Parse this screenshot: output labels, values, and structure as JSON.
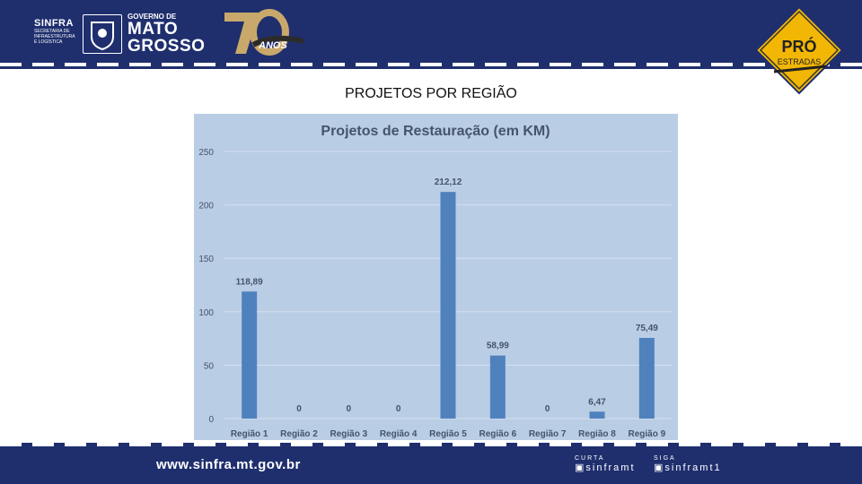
{
  "header": {
    "sinfra_title": "SINFRA",
    "sinfra_sub1": "SECRETARIA DE",
    "sinfra_sub2": "INFRAESTRUTURA",
    "sinfra_sub3": "E LOGÍSTICA",
    "gov_line1": "GOVERNO DE",
    "gov_line2": "MATO",
    "gov_line3": "GROSSO",
    "anos_label": "ANOS",
    "pro_label": "PRÓ",
    "estradas_label": "ESTRADAS"
  },
  "page_title": "PROJETOS POR REGIÃO",
  "footer": {
    "url": "www.sinfra.mt.gov.br",
    "curta_label": "CURTA",
    "curta_handle": "sinframt",
    "siga_label": "SIGA",
    "siga_handle": "sinframt1"
  },
  "colors": {
    "brand_navy": "#1f2f6e",
    "chart_bg": "#b9cde5",
    "bar": "#4f81bd",
    "title_text": "#44546a"
  },
  "chart_data": {
    "type": "bar",
    "title": "Projetos de Restauração (em KM)",
    "categories": [
      "Região 1",
      "Região 2",
      "Região 3",
      "Região 4",
      "Região 5",
      "Região 6",
      "Região 7",
      "Região 8",
      "Região 9"
    ],
    "values": [
      118.89,
      0,
      0,
      0,
      212.12,
      58.99,
      0,
      6.47,
      75.49
    ],
    "data_labels": [
      "118,89",
      "0",
      "0",
      "0",
      "212,12",
      "58,99",
      "0",
      "6,47",
      "75,49"
    ],
    "yticks": [
      "0",
      "50",
      "100",
      "150",
      "200",
      "250"
    ],
    "ylim": [
      0,
      250
    ],
    "grid": true
  }
}
